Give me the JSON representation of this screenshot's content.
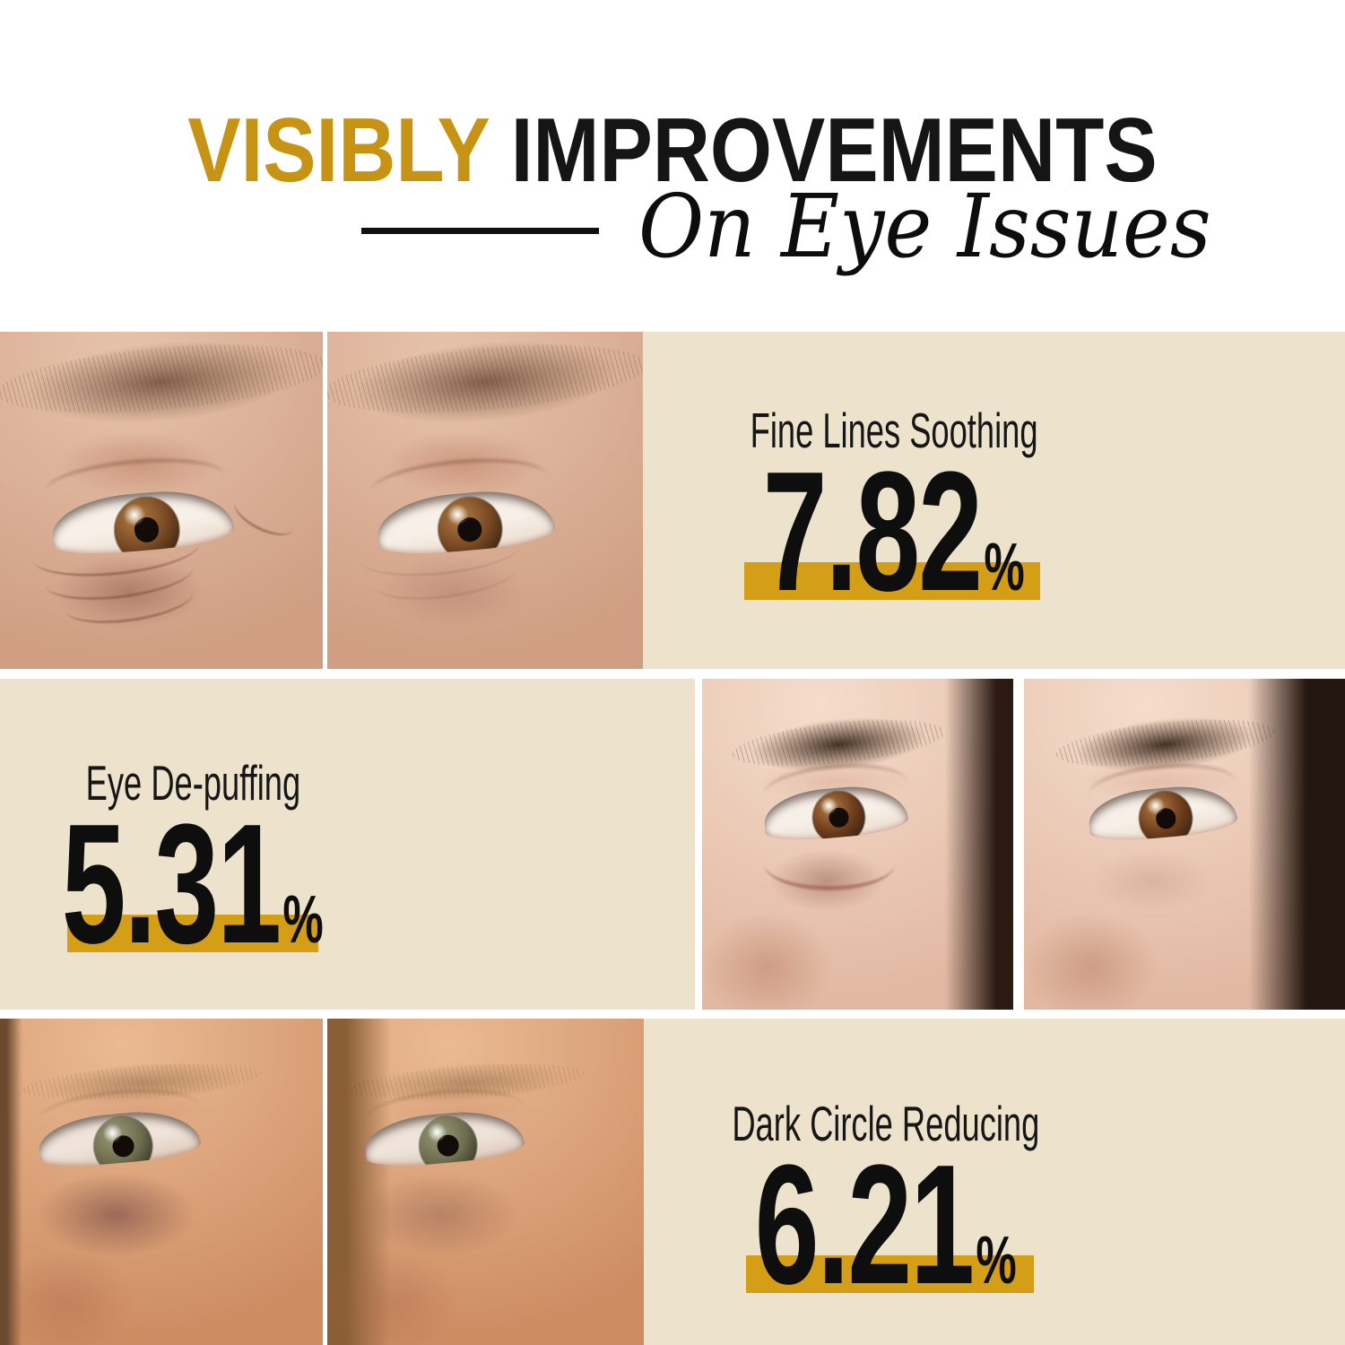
{
  "title": {
    "highlight": "VISIBLY",
    "rest": "IMPROVEMENTS",
    "subtitle": "On Eye Issues"
  },
  "stats": [
    {
      "label": "Fine Lines Soothing",
      "value": "7.82",
      "unit": "%"
    },
    {
      "label": "Eye De-puffing",
      "value": "5.31",
      "unit": "%"
    },
    {
      "label": "Dark Circle Reducing",
      "value": "6.21",
      "unit": "%"
    }
  ],
  "colors": {
    "accent_gold": "#C79315",
    "bar_gold": "#D59E17",
    "panel_beige": "#EDE3CC",
    "title_black": "#151515"
  }
}
